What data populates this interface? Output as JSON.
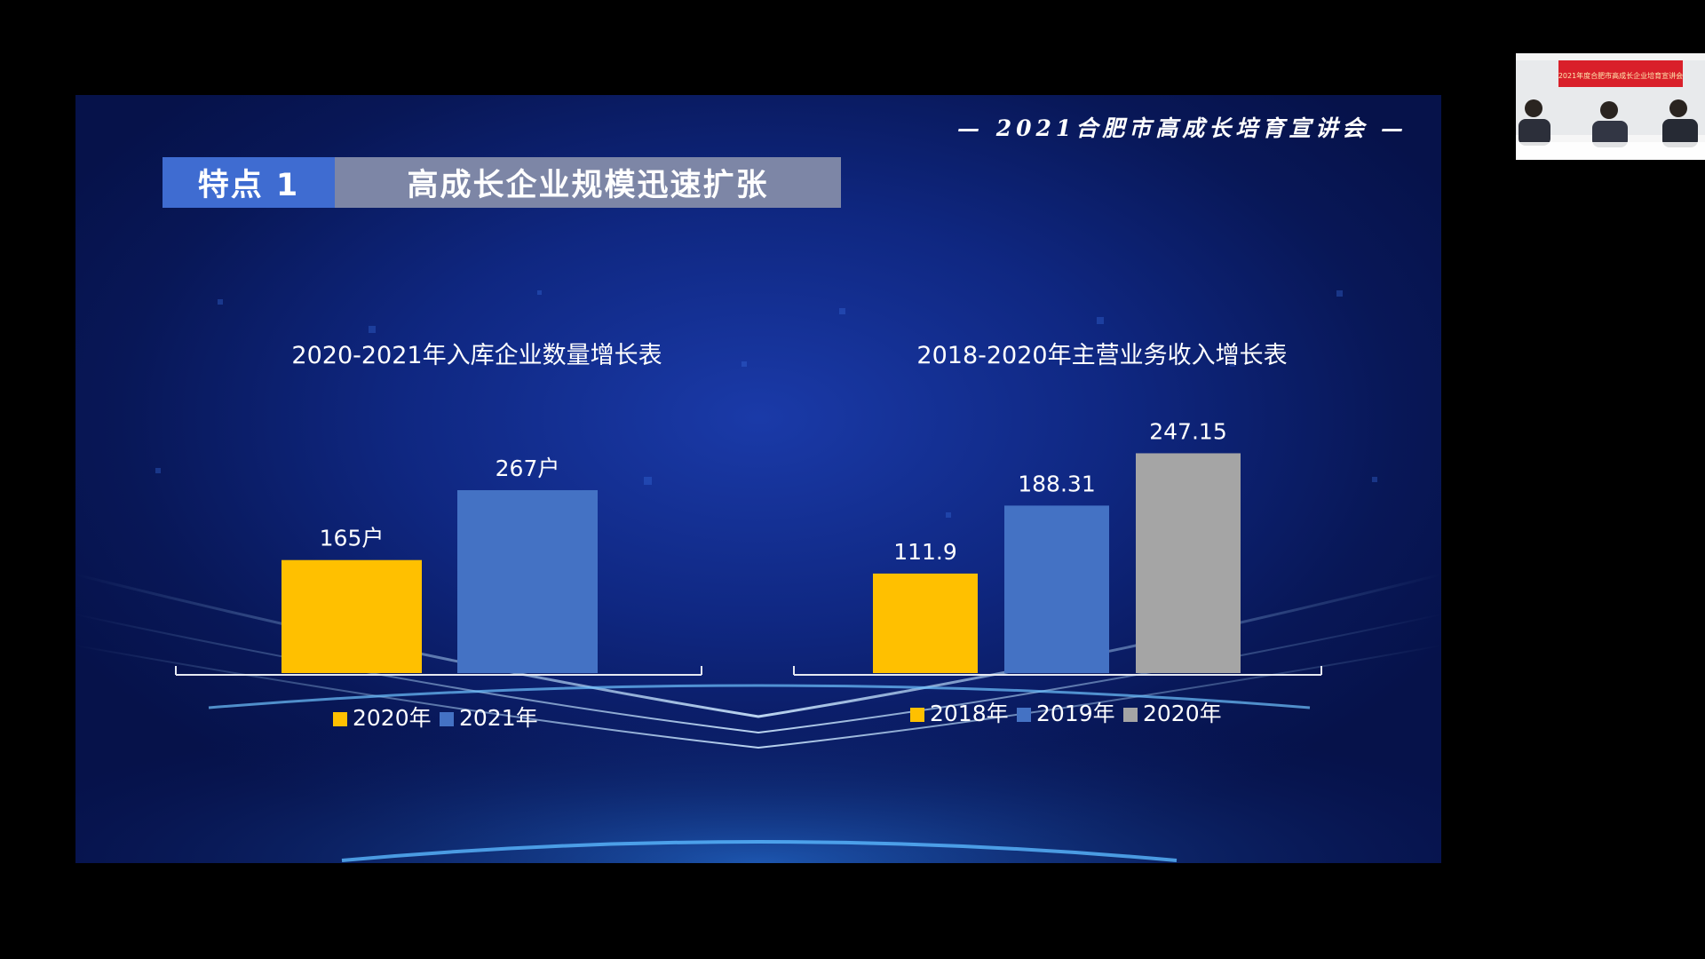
{
  "slide": {
    "header": "— 2021合肥市高成长培育宣讲会 —",
    "badge_number": "特点 1",
    "badge_title": "高成长企业规模迅速扩张"
  },
  "charts": [
    {
      "type": "bar",
      "title": "2020-2021年入库企业数量增长表",
      "categories": [
        "2020年",
        "2021年"
      ],
      "values": [
        165,
        267
      ],
      "value_labels": [
        "165户",
        "267户"
      ],
      "colors": [
        "#ffc000",
        "#4472c4"
      ],
      "legend": [
        "2020年",
        "2021年"
      ],
      "legend_position": "bottom",
      "ylim": [
        0,
        350
      ],
      "grid": false
    },
    {
      "type": "bar",
      "title": "2018-2020年主营业务收入增长表",
      "categories": [
        "2018年",
        "2019年",
        "2020年"
      ],
      "values": [
        111.9,
        188.31,
        247.15
      ],
      "value_labels": [
        "111.9",
        "188.31",
        "247.15"
      ],
      "colors": [
        "#ffc000",
        "#4472c4",
        "#a5a5a5"
      ],
      "legend": [
        "2018年",
        "2019年",
        "2020年"
      ],
      "legend_position": "bottom",
      "ylim": [
        0,
        300
      ],
      "grid": false
    }
  ],
  "webcam": {
    "banner_color": "#d9202a",
    "banner_text": "2021年度合肥市高成长企业培育宣讲会"
  }
}
